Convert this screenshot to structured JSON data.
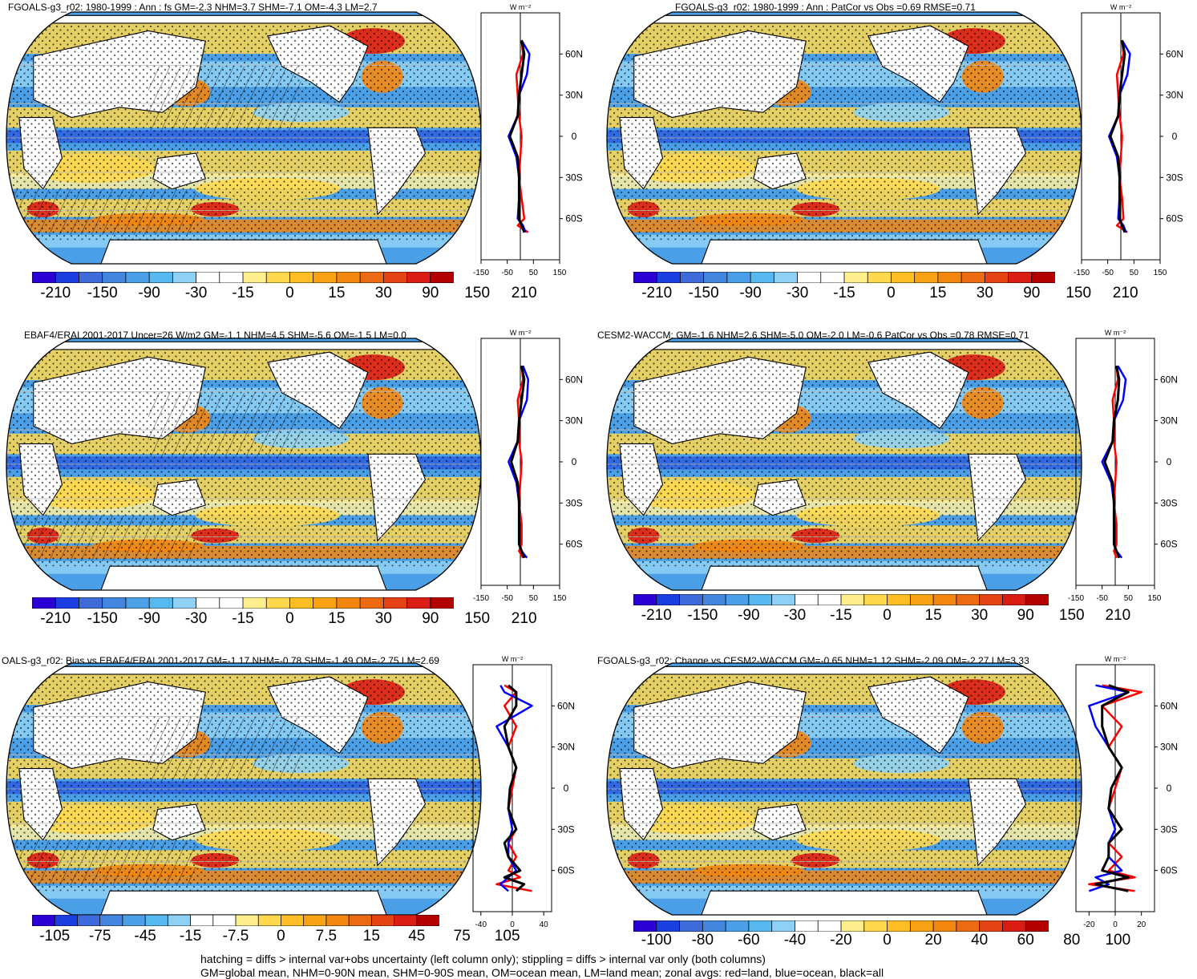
{
  "panels": [
    {
      "title": "FGOALS-g3_r02: 1980-1999 : Ann : fs GM=-2.3 NHM=3.7 SHM=-7.1 OM=-4.3 LM=2.7",
      "hatching": true,
      "colorbar_labels": [
        "-210",
        "-150",
        "-90",
        "-30",
        "-15",
        "0",
        "15",
        "30",
        "90",
        "150",
        "210"
      ],
      "chart_data": {
        "type": "line",
        "title": "W m⁻²",
        "xlim": [
          -150,
          150
        ],
        "x_ticks": [
          "-150",
          "-50",
          "50",
          "150"
        ],
        "y_ticks": [
          "60N",
          "30N",
          "0",
          "30S",
          "60S"
        ],
        "ylim": [
          -90,
          90
        ],
        "series": [
          {
            "name": "red=land",
            "color": "#ff0000",
            "lat": [
              -70,
              -65,
              -60,
              -45,
              -30,
              -15,
              0,
              15,
              30,
              45,
              60,
              70
            ],
            "values": [
              30,
              -10,
              15,
              5,
              -5,
              0,
              5,
              -5,
              -10,
              -15,
              10,
              5
            ]
          },
          {
            "name": "blue=ocean",
            "color": "#0000ff",
            "lat": [
              -70,
              -65,
              -60,
              -45,
              -30,
              -15,
              0,
              15,
              30,
              45,
              60,
              70
            ],
            "values": [
              20,
              10,
              -10,
              -5,
              -5,
              -15,
              -45,
              -10,
              -5,
              25,
              35,
              5
            ]
          },
          {
            "name": "black=all",
            "color": "#000000",
            "lat": [
              -70,
              -65,
              -60,
              -45,
              -30,
              -15,
              0,
              15,
              30,
              45,
              60,
              70
            ],
            "values": [
              15,
              5,
              -5,
              -5,
              -5,
              -10,
              -40,
              -10,
              -5,
              5,
              15,
              5
            ]
          }
        ]
      }
    },
    {
      "title": "FGOALS-g3_r02: 1980-1999 : Ann : PatCor vs Obs =0.69 RMSE=0.71",
      "hatching": false,
      "colorbar_labels": [
        "-210",
        "-150",
        "-90",
        "-30",
        "-15",
        "0",
        "15",
        "30",
        "90",
        "150",
        "210"
      ],
      "chart_data": {
        "type": "line",
        "title": "W m⁻²",
        "xlim": [
          -150,
          150
        ],
        "x_ticks": [
          "-150",
          "-50",
          "50",
          "150"
        ],
        "y_ticks": [
          "60N",
          "30N",
          "0",
          "30S",
          "60S"
        ],
        "ylim": [
          -90,
          90
        ],
        "series": [
          {
            "name": "red=land",
            "color": "#ff0000",
            "lat": [
              -70,
              -65,
              -60,
              -45,
              -30,
              -15,
              0,
              15,
              30,
              45,
              60,
              70
            ],
            "values": [
              25,
              -15,
              10,
              5,
              -5,
              0,
              5,
              -5,
              -10,
              -15,
              10,
              5
            ]
          },
          {
            "name": "blue=ocean",
            "color": "#0000ff",
            "lat": [
              -70,
              -65,
              -60,
              -45,
              -30,
              -15,
              0,
              15,
              30,
              45,
              60,
              70
            ],
            "values": [
              20,
              10,
              -10,
              -5,
              -5,
              -15,
              -45,
              -10,
              -5,
              25,
              35,
              5
            ]
          },
          {
            "name": "black=all",
            "color": "#000000",
            "lat": [
              -70,
              -65,
              -60,
              -45,
              -30,
              -15,
              0,
              15,
              30,
              45,
              60,
              70
            ],
            "values": [
              15,
              5,
              -5,
              -5,
              -5,
              -10,
              -40,
              -10,
              -5,
              5,
              15,
              5
            ]
          }
        ]
      }
    },
    {
      "title": "EBAF4/ERAI 2001-2017 Uncer=26 W/m2 GM=-1.1 NHM=4.5 SHM=-5.6 OM=-1.5 LM=0.0",
      "hatching": true,
      "colorbar_labels": [
        "-210",
        "-150",
        "-90",
        "-30",
        "-15",
        "0",
        "15",
        "30",
        "90",
        "150",
        "210"
      ],
      "chart_data": {
        "type": "line",
        "title": "W m⁻²",
        "xlim": [
          -150,
          150
        ],
        "x_ticks": [
          "-150",
          "-50",
          "50",
          "150"
        ],
        "y_ticks": [
          "60N",
          "30N",
          "0",
          "30S",
          "60S"
        ],
        "ylim": [
          -90,
          90
        ],
        "series": [
          {
            "name": "red=land",
            "color": "#ff0000",
            "lat": [
              -70,
              -65,
              -60,
              -45,
              -30,
              -15,
              0,
              15,
              30,
              45,
              60,
              70
            ],
            "values": [
              10,
              -5,
              5,
              5,
              -5,
              0,
              5,
              -5,
              -5,
              -10,
              10,
              5
            ]
          },
          {
            "name": "blue=ocean",
            "color": "#0000ff",
            "lat": [
              -70,
              -65,
              -60,
              -45,
              -30,
              -15,
              0,
              15,
              30,
              45,
              60,
              70
            ],
            "values": [
              25,
              5,
              -5,
              -5,
              -5,
              -15,
              -45,
              -10,
              -5,
              25,
              30,
              10
            ]
          },
          {
            "name": "black=all",
            "color": "#000000",
            "lat": [
              -70,
              -65,
              -60,
              -45,
              -30,
              -15,
              0,
              15,
              30,
              45,
              60,
              70
            ],
            "values": [
              15,
              5,
              -5,
              -5,
              -5,
              -10,
              -35,
              -10,
              -5,
              5,
              15,
              5
            ]
          }
        ]
      }
    },
    {
      "title": "CESM2-WACCM: GM=-1.6 NHM=2.6 SHM=-5.0 OM=-2.0 LM=-0.6 PatCor vs Obs =0.78 RMSE=0.71",
      "hatching": false,
      "colorbar_labels": [
        "-210",
        "-150",
        "-90",
        "-30",
        "-15",
        "0",
        "15",
        "30",
        "90",
        "150",
        "210"
      ],
      "chart_data": {
        "type": "line",
        "title": "W m⁻²",
        "xlim": [
          -150,
          150
        ],
        "x_ticks": [
          "-150",
          "-50",
          "50",
          "150"
        ],
        "y_ticks": [
          "60N",
          "30N",
          "0",
          "30S",
          "60S"
        ],
        "ylim": [
          -90,
          90
        ],
        "series": [
          {
            "name": "red=land",
            "color": "#ff0000",
            "lat": [
              -70,
              -65,
              -60,
              -45,
              -30,
              -15,
              0,
              15,
              30,
              45,
              60,
              70
            ],
            "values": [
              5,
              -5,
              5,
              5,
              -5,
              0,
              5,
              -5,
              -5,
              -10,
              10,
              5
            ]
          },
          {
            "name": "blue=ocean",
            "color": "#0000ff",
            "lat": [
              -70,
              -65,
              -60,
              -45,
              -30,
              -15,
              0,
              15,
              30,
              45,
              60,
              70
            ],
            "values": [
              25,
              5,
              -5,
              -5,
              -5,
              -15,
              -50,
              -10,
              -5,
              30,
              40,
              10
            ]
          },
          {
            "name": "black=all",
            "color": "#000000",
            "lat": [
              -70,
              -65,
              -60,
              -45,
              -30,
              -15,
              0,
              15,
              30,
              45,
              60,
              70
            ],
            "values": [
              15,
              5,
              -5,
              -5,
              -5,
              -10,
              -40,
              -10,
              -5,
              10,
              15,
              5
            ]
          }
        ]
      }
    },
    {
      "title": "OALS-g3_r02: Bias vs EBAF4/ERAI 2001-2017 GM=-1.17 NHM=-0.78 SHM=-1.49 OM=-2.75 LM=2.69",
      "hatching": true,
      "colorbar_labels": [
        "-105",
        "-75",
        "-45",
        "-15",
        "-7.5",
        "0",
        "7.5",
        "15",
        "45",
        "75",
        "105"
      ],
      "chart_data": {
        "type": "line",
        "title": "W m⁻²",
        "xlim": [
          -50,
          50
        ],
        "x_ticks": [
          "-40",
          "0",
          "40"
        ],
        "y_ticks": [
          "60N",
          "30N",
          "0",
          "30S",
          "60S"
        ],
        "ylim": [
          -90,
          90
        ],
        "series": [
          {
            "name": "red=land",
            "color": "#ff0000",
            "lat": [
              -75,
              -70,
              -65,
              -60,
              -50,
              -40,
              -30,
              -15,
              0,
              15,
              30,
              45,
              60,
              70,
              75
            ],
            "values": [
              25,
              -20,
              10,
              -5,
              5,
              -5,
              5,
              -5,
              0,
              5,
              -5,
              5,
              -10,
              5,
              -10
            ]
          },
          {
            "name": "blue=ocean",
            "color": "#0000ff",
            "lat": [
              -75,
              -70,
              -65,
              -60,
              -50,
              -40,
              -30,
              -15,
              0,
              15,
              30,
              45,
              60,
              70,
              75
            ],
            "values": [
              -5,
              -15,
              -5,
              5,
              -5,
              -5,
              0,
              -5,
              -3,
              5,
              -5,
              -20,
              25,
              -10,
              -15
            ]
          },
          {
            "name": "black=all",
            "color": "#000000",
            "lat": [
              -75,
              -70,
              -65,
              -60,
              -50,
              -40,
              -30,
              -15,
              0,
              15,
              30,
              45,
              60,
              70,
              75
            ],
            "values": [
              5,
              15,
              -10,
              10,
              -5,
              -10,
              5,
              -5,
              -3,
              5,
              -5,
              -10,
              5,
              5,
              -5
            ]
          }
        ]
      }
    },
    {
      "title": "FGOALS-g3_r02: Change vs CESM2-WACCM GM=-0.65 NHM=1.12 SHM=-2.09 OM=-2.27 LM=3.33",
      "hatching": false,
      "colorbar_labels": [
        "-100",
        "-80",
        "-60",
        "-40",
        "-20",
        "0",
        "20",
        "40",
        "60",
        "80",
        "100"
      ],
      "chart_data": {
        "type": "line",
        "title": "W m⁻²",
        "xlim": [
          -30,
          30
        ],
        "x_ticks": [
          "-20",
          "0",
          "20"
        ],
        "y_ticks": [
          "60N",
          "30N",
          "0",
          "30S",
          "60S"
        ],
        "ylim": [
          -90,
          90
        ],
        "series": [
          {
            "name": "red=land",
            "color": "#ff0000",
            "lat": [
              -75,
              -70,
              -65,
              -60,
              -50,
              -40,
              -30,
              -15,
              0,
              15,
              30,
              45,
              60,
              70,
              75
            ],
            "values": [
              15,
              -20,
              15,
              -5,
              5,
              -5,
              5,
              -5,
              0,
              5,
              -5,
              5,
              -10,
              20,
              -10
            ]
          },
          {
            "name": "blue=ocean",
            "color": "#0000ff",
            "lat": [
              -75,
              -70,
              -65,
              -60,
              -50,
              -40,
              -30,
              -15,
              0,
              15,
              30,
              45,
              60,
              70,
              75
            ],
            "values": [
              -20,
              -5,
              -15,
              5,
              -5,
              -5,
              0,
              -5,
              -3,
              5,
              -5,
              -15,
              -20,
              10,
              -15
            ]
          },
          {
            "name": "black=all",
            "color": "#000000",
            "lat": [
              -75,
              -70,
              -65,
              -60,
              -50,
              -40,
              -30,
              -15,
              0,
              15,
              30,
              45,
              60,
              70,
              75
            ],
            "values": [
              10,
              -15,
              10,
              -10,
              -5,
              -5,
              5,
              -5,
              -3,
              5,
              -5,
              -10,
              -10,
              10,
              -5
            ]
          }
        ]
      }
    }
  ],
  "colorbar_colors": [
    "#2b00d6",
    "#1a3ee0",
    "#3f6bda",
    "#4286e0",
    "#4a9fe6",
    "#56b9ef",
    "#8fd1f4",
    "#ffffff",
    "#ffffff",
    "#ffef8c",
    "#ffd84e",
    "#ffbf24",
    "#f9a213",
    "#f3860e",
    "#ec6a12",
    "#e44413",
    "#da1c13",
    "#b50000"
  ],
  "map_colors": {
    "land": "#ffffff",
    "blue": "#4a9fe6",
    "lightblue": "#8fd1f4",
    "deepblue": "#2b5fe0",
    "yellow": "#ffd84e",
    "paleyellow": "#fff0a0",
    "orange": "#f3860e",
    "red": "#da1c13"
  },
  "footer": {
    "line1": "hatching = diffs > internal var+obs uncertainty (left column only); stippling = diffs > internal var only (both columns)",
    "line2": "GM=global mean, NHM=0-90N mean, SHM=0-90S mean, OM=ocean mean, LM=land mean; zonal avgs: red=land, blue=ocean, black=all"
  }
}
